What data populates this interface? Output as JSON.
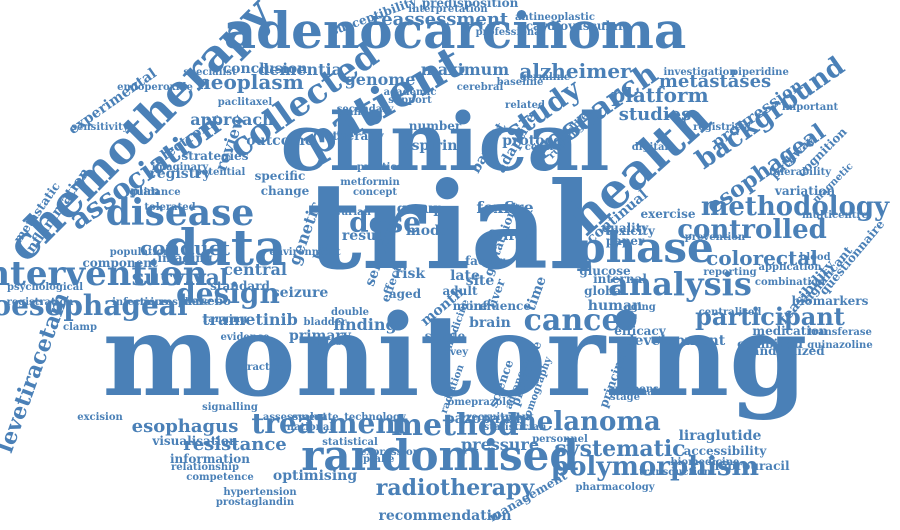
{
  "colors": {
    "word": "#4a80b7",
    "background": "#ffffff"
  },
  "words": [
    "monitoring",
    "trial",
    "clinical",
    "adenocarcinoma",
    "chemotherapy",
    "patient",
    "data",
    "randomised",
    "intervention",
    "health",
    "disease",
    "phase",
    "analysis",
    "oesophageal",
    "design",
    "collected",
    "research",
    "cancer",
    "methodology",
    "treatment",
    "method",
    "melanoma",
    "polymorphism",
    "radiotherapy",
    "controlled",
    "participant",
    "association",
    "study",
    "systematic",
    "colorectal",
    "esophageal",
    "background",
    "reassessment",
    "dose",
    "conduct",
    "survival",
    "alzheimer",
    "neoplasm",
    "dementia",
    "genome",
    "maximum",
    "platform",
    "studies",
    "metastases",
    "progression",
    "levetiracetam",
    "esophagus",
    "trametinib",
    "resistance",
    "pressure",
    "pazopanib",
    "recommendation",
    "registry",
    "review",
    "electronic",
    "approach",
    "conclusion",
    "inflammation",
    "experimental",
    "metastatic",
    "finding",
    "central",
    "seizure",
    "standard",
    "model",
    "result",
    "group",
    "risk",
    "aged",
    "month",
    "foxfire",
    "folfox",
    "human",
    "global",
    "continual",
    "liraglutide",
    "accessibility",
    "fluorouracil",
    "information",
    "visualisation",
    "optimising",
    "susceptibility",
    "predisposition",
    "cardiovascular",
    "interpretation",
    "antineoplastic",
    "professional",
    "feasibility",
    "significant",
    "questionnaire",
    "combined",
    "randomized",
    "medication",
    "multicentre",
    "development",
    "efficacy",
    "quality",
    "paper",
    "glucose",
    "internal",
    "brain",
    "more",
    "single",
    "survey",
    "primary",
    "outcome",
    "aspirin",
    "protocol",
    "barrett",
    "adaptive",
    "variation",
    "cognition",
    "pathway",
    "biomarkers",
    "transferase",
    "quinazoline",
    "component",
    "imaging",
    "placebo",
    "genetic",
    "based",
    "specific",
    "change",
    "plan",
    "strategies",
    "potential",
    "tolerated",
    "paclitaxel",
    "number",
    "academic",
    "support",
    "training",
    "therapy",
    "management",
    "pharmacology",
    "transduction",
    "biomedicine",
    "personnel",
    "prostaglandin",
    "hypertension",
    "competence",
    "relationship",
    "statistical",
    "evaluate",
    "national",
    "technology",
    "expression",
    "uptake",
    "double",
    "bladder",
    "evidence",
    "ranging",
    "exercise",
    "toxicity",
    "prevention",
    "reporting",
    "combination",
    "application",
    "blood",
    "glutathione",
    "investigation",
    "piperidine",
    "endoperoxide",
    "magnetic",
    "tolerability",
    "important",
    "registries",
    "digital",
    "ovarian",
    "environment",
    "population",
    "psychological",
    "registration",
    "infectious",
    "microsphere",
    "excision",
    "signalling",
    "practical",
    "assessment",
    "radiation",
    "medicine",
    "science",
    "principal",
    "stage",
    "response",
    "liver",
    "time",
    "late",
    "site",
    "adult",
    "factor",
    "effect",
    "selective",
    "influence",
    "protective",
    "advanced",
    "tomography",
    "omeprazole",
    "recruitment",
    "statistician",
    "metformin",
    "concept",
    "guidance",
    "germline",
    "baseline",
    "cerebral",
    "related",
    "middle",
    "control",
    "running",
    "secondary",
    "specialist",
    "imaginary",
    "sensitivity",
    "practice",
    "female",
    "centralised",
    "lifestyle",
    "clamp",
    "aging"
  ]
}
